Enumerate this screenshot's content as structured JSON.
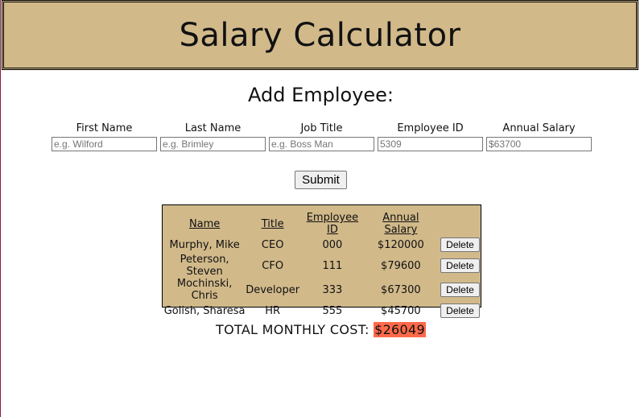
{
  "header": {
    "title": "Salary Calculator"
  },
  "form": {
    "heading": "Add Employee:",
    "fields": [
      {
        "label": "First Name",
        "placeholder": "e.g. Wilford"
      },
      {
        "label": "Last Name",
        "placeholder": "e.g. Brimley"
      },
      {
        "label": "Job Title",
        "placeholder": "e.g. Boss Man"
      },
      {
        "label": "Employee ID",
        "placeholder": "5309"
      },
      {
        "label": "Annual Salary",
        "placeholder": "$63700"
      }
    ],
    "submit_label": "Submit"
  },
  "table": {
    "headers": [
      "Name",
      "Title",
      "Employee ID",
      "Annual Salary"
    ],
    "rows": [
      {
        "name": "Murphy, Mike",
        "title": "CEO",
        "id": "000",
        "salary": "$120000",
        "action": "Delete"
      },
      {
        "name": "Peterson, Steven",
        "title": "CFO",
        "id": "111",
        "salary": "$79600",
        "action": "Delete"
      },
      {
        "name": "Mochinski, Chris",
        "title": "Developer",
        "id": "333",
        "salary": "$67300",
        "action": "Delete"
      },
      {
        "name": "Golish, Sharesa",
        "title": "HR",
        "id": "555",
        "salary": "$45700",
        "action": "Delete"
      }
    ]
  },
  "total": {
    "label": "TOTAL MONTHLY COST: ",
    "amount": "$26049",
    "highlight_color": "#ff6a4a"
  },
  "colors": {
    "accent": "#d1b98a"
  }
}
